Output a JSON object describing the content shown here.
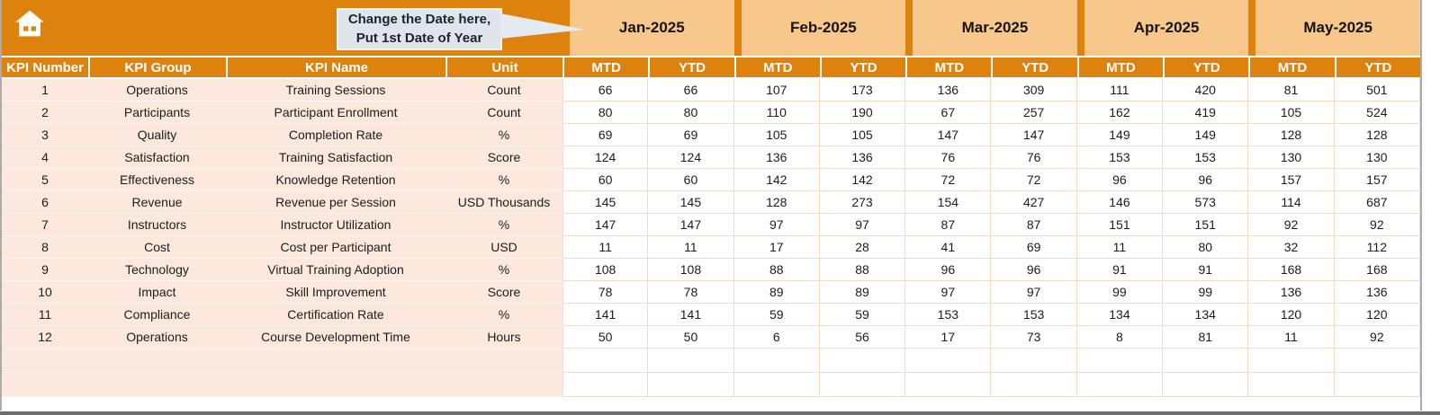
{
  "topbar": {
    "callout_line1": "Change the Date here,",
    "callout_line2": "Put 1st Date of Year"
  },
  "months": [
    "Jan-2025",
    "Feb-2025",
    "Mar-2025",
    "Apr-2025",
    "May-2025"
  ],
  "subcolumns": [
    "MTD",
    "YTD"
  ],
  "kpi_columns": [
    "KPI Number",
    "KPI Group",
    "KPI Name",
    "Unit"
  ],
  "rows": [
    {
      "number": "1",
      "group": "Operations",
      "name": "Training Sessions",
      "unit": "Count",
      "values": [
        66,
        66,
        107,
        173,
        136,
        309,
        111,
        420,
        81,
        501
      ]
    },
    {
      "number": "2",
      "group": "Participants",
      "name": "Participant Enrollment",
      "unit": "Count",
      "values": [
        80,
        80,
        110,
        190,
        67,
        257,
        162,
        419,
        105,
        524
      ]
    },
    {
      "number": "3",
      "group": "Quality",
      "name": "Completion Rate",
      "unit": "%",
      "values": [
        69,
        69,
        105,
        105,
        147,
        147,
        149,
        149,
        128,
        128
      ]
    },
    {
      "number": "4",
      "group": "Satisfaction",
      "name": "Training Satisfaction",
      "unit": "Score",
      "values": [
        124,
        124,
        136,
        136,
        76,
        76,
        153,
        153,
        130,
        130
      ]
    },
    {
      "number": "5",
      "group": "Effectiveness",
      "name": "Knowledge Retention",
      "unit": "%",
      "values": [
        60,
        60,
        142,
        142,
        72,
        72,
        96,
        96,
        157,
        157
      ]
    },
    {
      "number": "6",
      "group": "Revenue",
      "name": "Revenue per Session",
      "unit": "USD Thousands",
      "values": [
        145,
        145,
        128,
        273,
        154,
        427,
        146,
        573,
        114,
        687
      ]
    },
    {
      "number": "7",
      "group": "Instructors",
      "name": "Instructor Utilization",
      "unit": "%",
      "values": [
        147,
        147,
        97,
        97,
        87,
        87,
        151,
        151,
        92,
        92
      ]
    },
    {
      "number": "8",
      "group": "Cost",
      "name": "Cost per Participant",
      "unit": "USD",
      "values": [
        11,
        11,
        17,
        28,
        41,
        69,
        11,
        80,
        32,
        112
      ]
    },
    {
      "number": "9",
      "group": "Technology",
      "name": "Virtual Training Adoption",
      "unit": "%",
      "values": [
        108,
        108,
        88,
        88,
        96,
        96,
        91,
        91,
        168,
        168
      ]
    },
    {
      "number": "10",
      "group": "Impact",
      "name": "Skill Improvement",
      "unit": "Score",
      "values": [
        78,
        78,
        89,
        89,
        97,
        97,
        99,
        99,
        136,
        136
      ]
    },
    {
      "number": "11",
      "group": "Compliance",
      "name": "Certification Rate",
      "unit": "%",
      "values": [
        141,
        141,
        59,
        59,
        153,
        153,
        134,
        134,
        120,
        120
      ]
    },
    {
      "number": "12",
      "group": "Operations",
      "name": "Course Development Time",
      "unit": "Hours",
      "values": [
        50,
        50,
        6,
        56,
        17,
        73,
        8,
        81,
        11,
        92
      ]
    }
  ],
  "empty_row_count": 2,
  "colors": {
    "accent_orange": "#DD830D",
    "month_band_tan": "#F7C78C",
    "row_pink": "#FCE8DC",
    "grid_line": "#F3DCC1",
    "callout_bg": "#DFE5EB"
  }
}
